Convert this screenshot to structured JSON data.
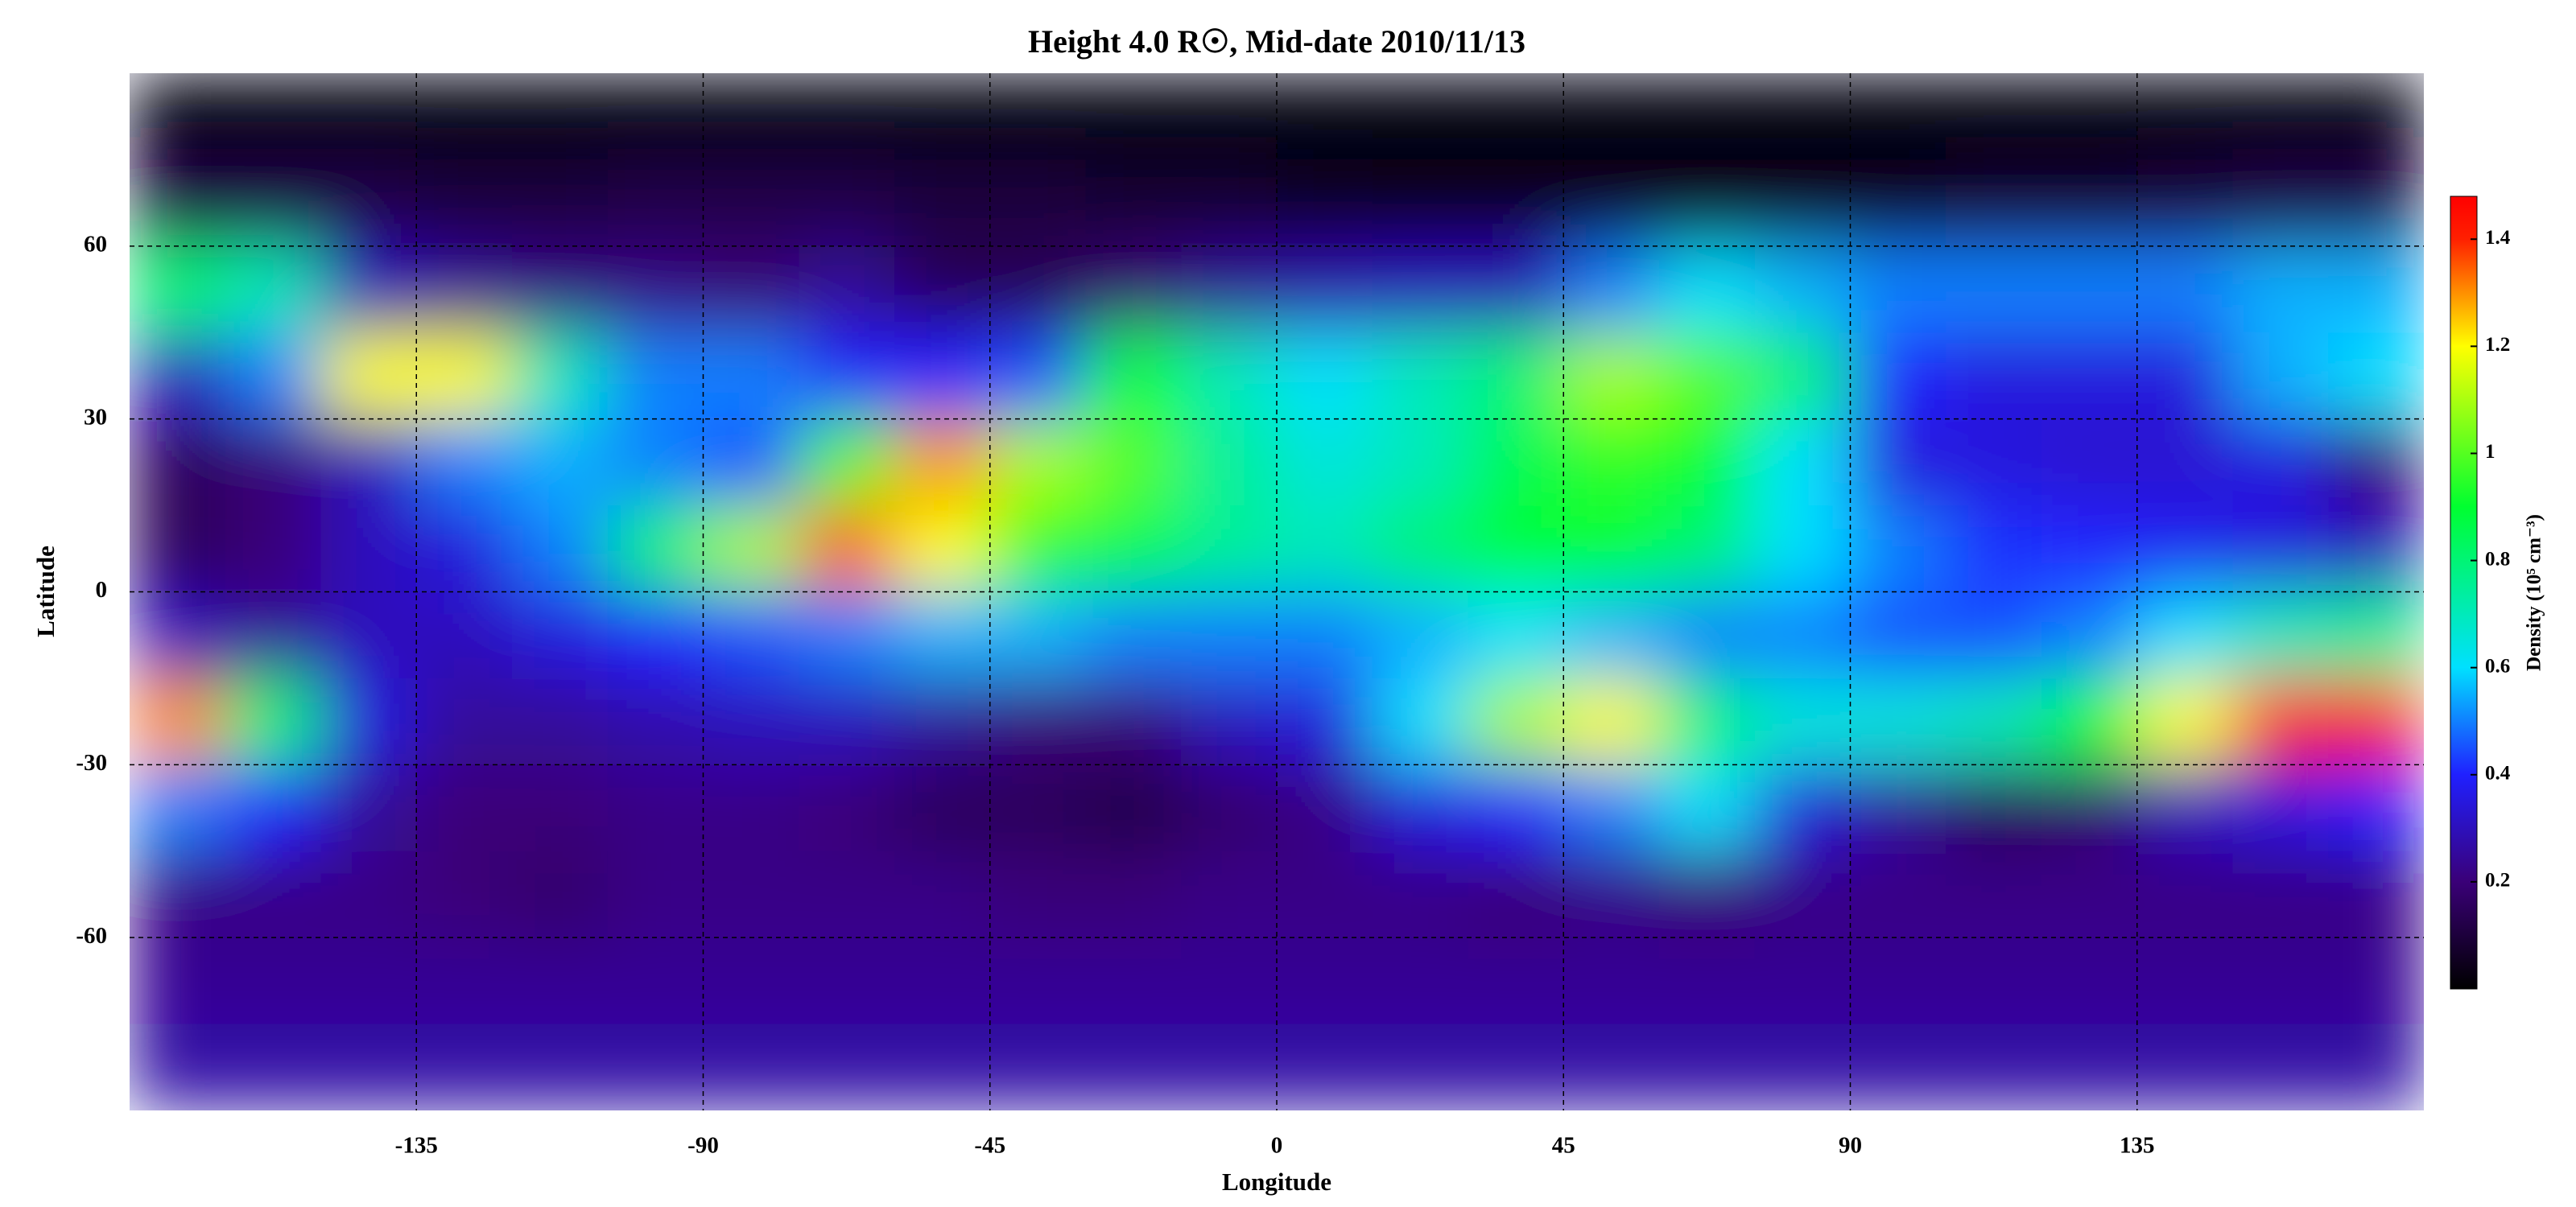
{
  "chart_data": {
    "type": "heatmap",
    "title": "Height 4.0 R☉, Mid-date 2010/11/13",
    "x_label": "Longitude",
    "y_label": "Latitude",
    "xlim": [
      -180,
      180
    ],
    "ylim": [
      -90,
      90
    ],
    "xticks": [
      -135,
      -90,
      -45,
      0,
      45,
      90,
      135
    ],
    "yticks": [
      60,
      30,
      0,
      -30,
      -60
    ],
    "grid": true,
    "x": [
      -172.5,
      -157.5,
      -142.5,
      -127.5,
      -112.5,
      -97.5,
      -82.5,
      -67.5,
      -52.5,
      -37.5,
      -22.5,
      -7.5,
      7.5,
      22.5,
      37.5,
      52.5,
      67.5,
      82.5,
      97.5,
      112.5,
      127.5,
      142.5,
      157.5,
      172.5
    ],
    "y": [
      82.5,
      67.5,
      52.5,
      37.5,
      22.5,
      7.5,
      -7.5,
      -22.5,
      -37.5,
      -52.5,
      -67.5,
      -82.5
    ],
    "z": [
      [
        0.02,
        0.02,
        0.02,
        0.02,
        0.02,
        0.02,
        0.02,
        0.02,
        0.02,
        0.02,
        0.02,
        0.02,
        0.02,
        0.02,
        0.02,
        0.02,
        0.02,
        0.02,
        0.02,
        0.02,
        0.02,
        0.02,
        0.02,
        0.02
      ],
      [
        0.12,
        0.12,
        0.12,
        0.1,
        0.1,
        0.12,
        0.12,
        0.12,
        0.1,
        0.1,
        0.08,
        0.08,
        0.06,
        0.05,
        0.05,
        0.05,
        0.05,
        0.05,
        0.06,
        0.08,
        0.08,
        0.1,
        0.12,
        0.12
      ],
      [
        0.8,
        0.7,
        0.3,
        0.25,
        0.22,
        0.22,
        0.2,
        0.25,
        0.15,
        0.15,
        0.2,
        0.25,
        0.28,
        0.3,
        0.3,
        0.5,
        0.6,
        0.55,
        0.5,
        0.5,
        0.5,
        0.5,
        0.55,
        0.55
      ],
      [
        0.3,
        0.5,
        1.2,
        1.2,
        0.7,
        0.5,
        0.5,
        0.4,
        0.4,
        0.45,
        0.9,
        0.7,
        0.6,
        0.7,
        0.8,
        1.1,
        1.0,
        0.8,
        0.4,
        0.35,
        0.35,
        0.35,
        0.55,
        0.6
      ],
      [
        0.15,
        0.2,
        0.3,
        0.5,
        0.55,
        0.5,
        0.45,
        1.0,
        1.3,
        1.1,
        1.0,
        0.75,
        0.65,
        0.7,
        0.85,
        0.95,
        0.9,
        0.6,
        0.35,
        0.35,
        0.33,
        0.33,
        0.35,
        0.2
      ],
      [
        0.15,
        0.2,
        0.3,
        0.35,
        0.5,
        0.8,
        1.1,
        1.35,
        1.2,
        0.95,
        0.85,
        0.75,
        0.7,
        0.8,
        0.9,
        0.9,
        0.8,
        0.6,
        0.5,
        0.42,
        0.4,
        0.38,
        0.35,
        0.3
      ],
      [
        0.3,
        0.25,
        0.3,
        0.3,
        0.35,
        0.4,
        0.45,
        0.5,
        0.55,
        0.55,
        0.5,
        0.5,
        0.5,
        0.55,
        0.6,
        0.55,
        0.5,
        0.5,
        0.45,
        0.45,
        0.5,
        0.6,
        0.7,
        0.75
      ],
      [
        1.3,
        0.8,
        0.35,
        0.25,
        0.25,
        0.28,
        0.3,
        0.3,
        0.25,
        0.2,
        0.2,
        0.3,
        0.35,
        0.6,
        1.1,
        1.2,
        0.8,
        0.65,
        0.65,
        0.7,
        0.9,
        1.2,
        1.4,
        1.45
      ],
      [
        0.5,
        0.4,
        0.25,
        0.2,
        0.2,
        0.22,
        0.22,
        0.2,
        0.15,
        0.15,
        0.12,
        0.18,
        0.22,
        0.35,
        0.4,
        0.5,
        0.6,
        0.35,
        0.25,
        0.15,
        0.18,
        0.3,
        0.35,
        0.4
      ],
      [
        0.22,
        0.22,
        0.22,
        0.2,
        0.18,
        0.22,
        0.22,
        0.22,
        0.22,
        0.2,
        0.2,
        0.22,
        0.22,
        0.22,
        0.2,
        0.22,
        0.2,
        0.22,
        0.22,
        0.22,
        0.22,
        0.22,
        0.22,
        0.22
      ],
      [
        0.24,
        0.24,
        0.24,
        0.24,
        0.24,
        0.24,
        0.24,
        0.24,
        0.24,
        0.24,
        0.24,
        0.24,
        0.24,
        0.24,
        0.24,
        0.24,
        0.24,
        0.24,
        0.24,
        0.24,
        0.24,
        0.24,
        0.24,
        0.24
      ],
      [
        0.27,
        0.27,
        0.27,
        0.27,
        0.27,
        0.27,
        0.27,
        0.27,
        0.27,
        0.27,
        0.27,
        0.27,
        0.27,
        0.27,
        0.27,
        0.27,
        0.27,
        0.27,
        0.27,
        0.27,
        0.27,
        0.27,
        0.27,
        0.27
      ]
    ],
    "colorscale": [
      {
        "value": 0,
        "color": "#000000"
      },
      {
        "value": 0.2,
        "color": "#3a0078"
      },
      {
        "value": 0.4,
        "color": "#2020ff"
      },
      {
        "value": 0.6,
        "color": "#00e0ff"
      },
      {
        "value": 0.9,
        "color": "#00ff30"
      },
      {
        "value": 1.2,
        "color": "#ffff00"
      },
      {
        "value": 1.4,
        "color": "#ff2000"
      },
      {
        "value": 1.48,
        "color": "#ff0000"
      }
    ],
    "colorbar": {
      "label": "Density (10⁵ cm⁻³)",
      "lim": [
        0,
        1.48
      ],
      "ticks": [
        0.2,
        0.4,
        0.6,
        0.8,
        1.0,
        1.2,
        1.4
      ]
    }
  }
}
